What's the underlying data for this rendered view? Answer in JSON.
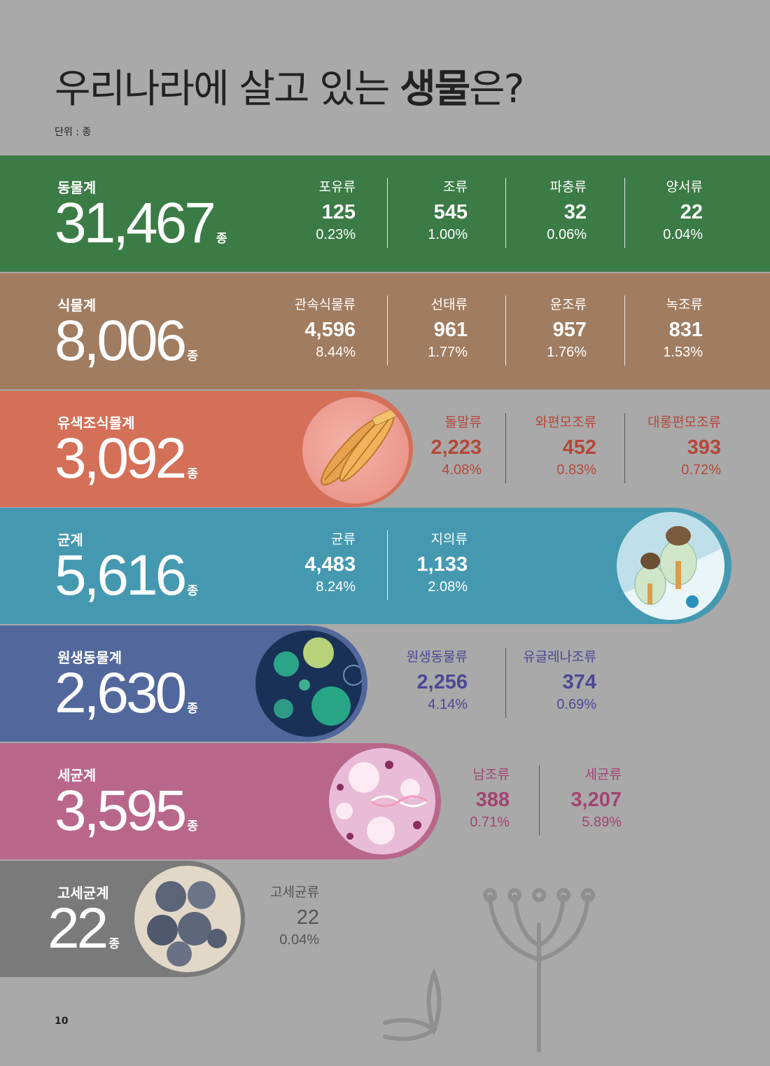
{
  "title": {
    "normal": "우리나라에 살고 있는 ",
    "bold": "생물",
    "tail": "은?"
  },
  "unit": "단위 : 종",
  "suffix": "종",
  "bands": {
    "animal": {
      "name": "동물계",
      "total": "31,467",
      "color": "#3b7b45",
      "subs": [
        {
          "name": "포유류",
          "count": "125",
          "pct": "0.23%"
        },
        {
          "name": "조류",
          "count": "545",
          "pct": "1.00%"
        },
        {
          "name": "파충류",
          "count": "32",
          "pct": "0.06%"
        },
        {
          "name": "양서류",
          "count": "22",
          "pct": "0.04%"
        }
      ]
    },
    "plant": {
      "name": "식물계",
      "total": "8,006",
      "color": "#a07c60",
      "subs": [
        {
          "name": "관속식물류",
          "count": "4,596",
          "pct": "8.44%"
        },
        {
          "name": "선태류",
          "count": "961",
          "pct": "1.77%"
        },
        {
          "name": "윤조류",
          "count": "957",
          "pct": "1.76%"
        },
        {
          "name": "녹조류",
          "count": "831",
          "pct": "1.53%"
        }
      ]
    },
    "chromista": {
      "name": "유색조식물계",
      "total": "3,092",
      "color": "#d47058",
      "subs": [
        {
          "name": "돌말류",
          "count": "2,223",
          "pct": "4.08%"
        },
        {
          "name": "와편모조류",
          "count": "452",
          "pct": "0.83%"
        },
        {
          "name": "대롱편모조류",
          "count": "393",
          "pct": "0.72%"
        }
      ]
    },
    "fungi": {
      "name": "균계",
      "total": "5,616",
      "color": "#4499b0",
      "subs": [
        {
          "name": "균류",
          "count": "4,483",
          "pct": "8.24%"
        },
        {
          "name": "지의류",
          "count": "1,133",
          "pct": "2.08%"
        }
      ]
    },
    "protozoa": {
      "name": "원생동물계",
      "total": "2,630",
      "color": "#52689c",
      "subs": [
        {
          "name": "원생동물류",
          "count": "2,256",
          "pct": "4.14%"
        },
        {
          "name": "유글레나조류",
          "count": "374",
          "pct": "0.69%"
        }
      ]
    },
    "bacteria": {
      "name": "세균계",
      "total": "3,595",
      "color": "#b8678b",
      "subs": [
        {
          "name": "남조류",
          "count": "388",
          "pct": "0.71%"
        },
        {
          "name": "세균류",
          "count": "3,207",
          "pct": "5.89%"
        }
      ]
    },
    "archaea": {
      "name": "고세균계",
      "total": "22",
      "color": "#7a7a7a",
      "subs": [
        {
          "name": "고세균류",
          "count": "22",
          "pct": "0.04%"
        }
      ]
    }
  },
  "page_number": "10"
}
